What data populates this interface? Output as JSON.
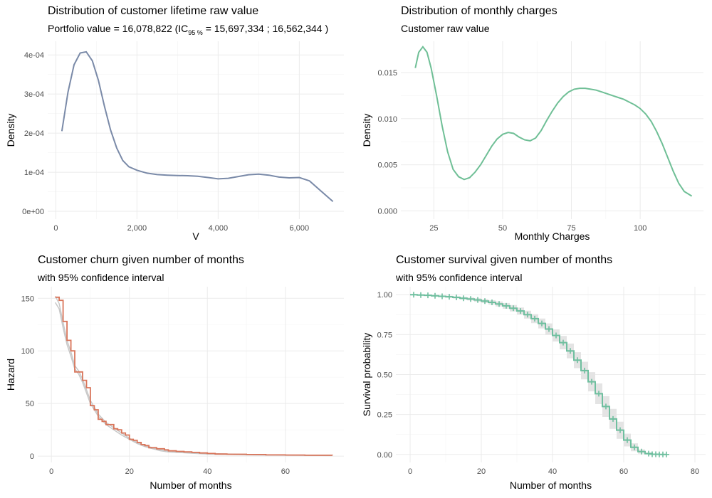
{
  "colors": {
    "density_v": "#7a8aa8",
    "density_mc": "#6fbf96",
    "hazard": "#d9755a",
    "hazard_ci": "#c8c8c8",
    "survival": "#6fbf9f",
    "survival_ci": "#e4e4e4"
  },
  "panels": {
    "tl": {
      "title": "Distribution of customer lifetime raw value",
      "subtitle_pre": "Portfolio value = 16,078,822 (IC",
      "subtitle_sub": "95 %",
      "subtitle_post": " =  15,697,334 ; 16,562,344 )"
    },
    "tr": {
      "title": "Distribution of monthly charges",
      "subtitle": "Customer raw value"
    },
    "bl": {
      "title": "Customer churn given number of months",
      "subtitle": "with 95% confidence interval"
    },
    "br": {
      "title": "Customer survival given number of months",
      "subtitle": "with 95% confidence interval"
    }
  },
  "chart_data": [
    {
      "id": "tl",
      "type": "line",
      "title": "Distribution of customer lifetime raw value",
      "xlabel": "V",
      "ylabel": "Density",
      "xlim": [
        -200,
        7100
      ],
      "ylim": [
        -2e-05,
        0.000435
      ],
      "xticks": [
        0,
        2000,
        4000,
        6000
      ],
      "xtick_labels": [
        "0",
        "2,000",
        "4,000",
        "6,000"
      ],
      "yticks": [
        0,
        0.0001,
        0.0002,
        0.0003,
        0.0004
      ],
      "ytick_labels": [
        "0e+00",
        "1e-04",
        "2e-04",
        "3e-04",
        "4e-04"
      ],
      "grid": true,
      "x": [
        150,
        300,
        450,
        600,
        750,
        900,
        1050,
        1200,
        1350,
        1500,
        1650,
        1800,
        2000,
        2250,
        2500,
        2750,
        3000,
        3250,
        3500,
        3750,
        4000,
        4250,
        4500,
        4750,
        5000,
        5250,
        5500,
        5750,
        6000,
        6250,
        6500,
        6830
      ],
      "y": [
        0.000205,
        0.000305,
        0.000375,
        0.000405,
        0.000408,
        0.000385,
        0.000335,
        0.000268,
        0.000208,
        0.000162,
        0.00013,
        0.000114,
        0.000105,
        9.75e-05,
        9.4e-05,
        9.25e-05,
        9.15e-05,
        9.1e-05,
        8.95e-05,
        8.65e-05,
        8.3e-05,
        8.45e-05,
        8.9e-05,
        9.35e-05,
        9.5e-05,
        9.25e-05,
        8.75e-05,
        8.55e-05,
        8.65e-05,
        7.8e-05,
        5.5e-05,
        2.5e-05
      ]
    },
    {
      "id": "tr",
      "type": "line",
      "title": "Distribution of monthly charges",
      "xlabel": "Monthly Charges",
      "ylabel": "Density",
      "xlim": [
        13,
        123
      ],
      "ylim": [
        -0.0009,
        0.0184
      ],
      "xticks": [
        25,
        50,
        75,
        100
      ],
      "xtick_labels": [
        "25",
        "50",
        "75",
        "100"
      ],
      "yticks": [
        0,
        0.005,
        0.01,
        0.015
      ],
      "ytick_labels": [
        "0.000",
        "0.005",
        "0.010",
        "0.015"
      ],
      "grid": true,
      "x": [
        18.25,
        19.5,
        21,
        22.5,
        24,
        26,
        28,
        30,
        32,
        34,
        36,
        38,
        40,
        42,
        44,
        46,
        48,
        50,
        52,
        54,
        56,
        58,
        60,
        62,
        64,
        66,
        68,
        70,
        72,
        74,
        76,
        78,
        80,
        82,
        84,
        86,
        88,
        90,
        92,
        94,
        96,
        98,
        100,
        102,
        104,
        106,
        108,
        110,
        112,
        114,
        116,
        118.75
      ],
      "y": [
        0.0155,
        0.0172,
        0.0178,
        0.0172,
        0.0155,
        0.0125,
        0.0092,
        0.0064,
        0.0045,
        0.0037,
        0.0034,
        0.0036,
        0.0042,
        0.005,
        0.006,
        0.007,
        0.0078,
        0.0083,
        0.0085,
        0.0084,
        0.008,
        0.0077,
        0.0076,
        0.0079,
        0.0087,
        0.0098,
        0.0108,
        0.0117,
        0.0124,
        0.0129,
        0.0132,
        0.0133,
        0.0133,
        0.0132,
        0.0131,
        0.0129,
        0.0127,
        0.0125,
        0.0123,
        0.0121,
        0.0118,
        0.0115,
        0.0111,
        0.0105,
        0.0097,
        0.0086,
        0.0073,
        0.0058,
        0.0043,
        0.003,
        0.0021,
        0.0016
      ]
    },
    {
      "id": "bl",
      "type": "line",
      "title": "Customer churn given number of months",
      "xlabel": "Number of months",
      "ylabel": "Hazard",
      "xlim": [
        -3.5,
        75
      ],
      "ylim": [
        -6,
        161
      ],
      "xticks": [
        0,
        20,
        40,
        60
      ],
      "xtick_labels": [
        "0",
        "20",
        "40",
        "60"
      ],
      "yticks": [
        0,
        50,
        100,
        150
      ],
      "ytick_labels": [
        "0",
        "50",
        "100",
        "150"
      ],
      "grid": true,
      "series": [
        {
          "role": "hazard",
          "step": true,
          "x": [
            1,
            2,
            3,
            4,
            5,
            6,
            7,
            8,
            9,
            10,
            11,
            12,
            13,
            14,
            15,
            16,
            17,
            18,
            19,
            20,
            21,
            22,
            23,
            24,
            25,
            26,
            27,
            28,
            29,
            30,
            32,
            34,
            36,
            38,
            40,
            42,
            45,
            50,
            55,
            60,
            65,
            72
          ],
          "y": [
            151,
            148,
            128,
            110,
            100,
            80,
            80,
            72,
            65,
            48,
            44,
            35,
            33,
            30,
            30,
            26,
            25,
            22,
            20,
            16,
            15,
            13,
            11,
            10,
            8,
            8,
            7,
            7,
            6,
            5,
            4.5,
            4,
            3.5,
            3,
            2.5,
            2,
            1.8,
            1.5,
            1.2,
            1,
            0.8,
            0.6
          ]
        },
        {
          "role": "ci_lower",
          "x": [
            1,
            2,
            3,
            4,
            5,
            6,
            7,
            8,
            9,
            10,
            12,
            14,
            16,
            18,
            20,
            22,
            24,
            26,
            28,
            30,
            35,
            40,
            50,
            60,
            72
          ],
          "y": [
            146,
            140,
            122,
            106,
            95,
            83,
            78,
            70,
            60,
            50,
            38,
            30,
            25,
            20,
            16,
            12,
            9,
            7,
            5,
            4,
            3,
            2,
            1.2,
            0.8,
            0.5
          ]
        },
        {
          "role": "ci_upper",
          "x": [
            1,
            2,
            3,
            4,
            5,
            6,
            7,
            8,
            9,
            10,
            12,
            14,
            16,
            18,
            20,
            22,
            24,
            26,
            28,
            30,
            35,
            40,
            50,
            60,
            72
          ],
          "y": [
            152,
            145,
            127,
            110,
            99,
            86,
            81,
            73,
            63,
            53,
            40,
            32,
            27,
            22,
            17,
            13,
            10,
            8,
            6,
            5,
            3.5,
            2.5,
            1.5,
            1,
            0.7
          ]
        }
      ]
    },
    {
      "id": "br",
      "type": "line",
      "title": "Customer survival given number of months",
      "xlabel": "Number of months",
      "ylabel": "Survival probability",
      "xlim": [
        -4,
        83
      ],
      "ylim": [
        -0.05,
        1.05
      ],
      "xticks": [
        0,
        20,
        40,
        60,
        80
      ],
      "xtick_labels": [
        "0",
        "20",
        "40",
        "60",
        "80"
      ],
      "yticks": [
        0,
        0.25,
        0.5,
        0.75,
        1
      ],
      "ytick_labels": [
        "0.00",
        "0.25",
        "0.50",
        "0.75",
        "1.00"
      ],
      "grid": true,
      "step": true,
      "x": [
        0,
        2,
        4,
        6,
        8,
        10,
        12,
        14,
        16,
        18,
        20,
        22,
        24,
        26,
        28,
        30,
        32,
        34,
        36,
        38,
        40,
        42,
        44,
        46,
        48,
        50,
        52,
        54,
        56,
        58,
        60,
        62,
        64,
        66,
        68,
        70,
        72
      ],
      "y": [
        1,
        0.998,
        0.996,
        0.993,
        0.99,
        0.987,
        0.983,
        0.978,
        0.973,
        0.967,
        0.96,
        0.952,
        0.942,
        0.93,
        0.915,
        0.898,
        0.875,
        0.85,
        0.82,
        0.785,
        0.745,
        0.7,
        0.648,
        0.59,
        0.525,
        0.455,
        0.38,
        0.3,
        0.222,
        0.152,
        0.09,
        0.045,
        0.018,
        0.005,
        0.001,
        0,
        0
      ],
      "ci_lower": [
        1,
        0.996,
        0.993,
        0.989,
        0.985,
        0.981,
        0.976,
        0.97,
        0.964,
        0.956,
        0.948,
        0.938,
        0.926,
        0.912,
        0.895,
        0.875,
        0.85,
        0.822,
        0.789,
        0.75,
        0.707,
        0.658,
        0.602,
        0.54,
        0.47,
        0.395,
        0.315,
        0.235,
        0.16,
        0.098,
        0.05,
        0.02,
        0.005,
        0,
        0,
        0,
        0
      ],
      "ci_upper": [
        1,
        1,
        0.999,
        0.997,
        0.995,
        0.993,
        0.99,
        0.986,
        0.982,
        0.978,
        0.972,
        0.966,
        0.958,
        0.948,
        0.935,
        0.92,
        0.9,
        0.878,
        0.851,
        0.82,
        0.783,
        0.742,
        0.694,
        0.64,
        0.58,
        0.515,
        0.445,
        0.365,
        0.285,
        0.205,
        0.13,
        0.07,
        0.031,
        0.012,
        0.003,
        0,
        0
      ],
      "censor_x": [
        1,
        3,
        5,
        7,
        9,
        11,
        13,
        15,
        17,
        19,
        21,
        23,
        25,
        27,
        29,
        31,
        33,
        35,
        37,
        39,
        41,
        43,
        45,
        47,
        49,
        51,
        53,
        55,
        57,
        59,
        61,
        63,
        65,
        67,
        68,
        69,
        70,
        71,
        72
      ]
    }
  ]
}
